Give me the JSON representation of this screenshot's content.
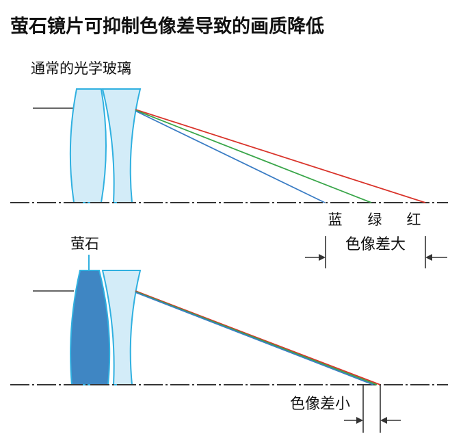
{
  "title": "萤石镜片可抑制色像差导致的画质降低",
  "top": {
    "label": "通常的光学玻璃",
    "colors": [
      "蓝",
      "绿",
      "红"
    ],
    "aberration": "色像差大"
  },
  "bottom": {
    "label": "萤石",
    "aberration": "色像差小"
  }
}
